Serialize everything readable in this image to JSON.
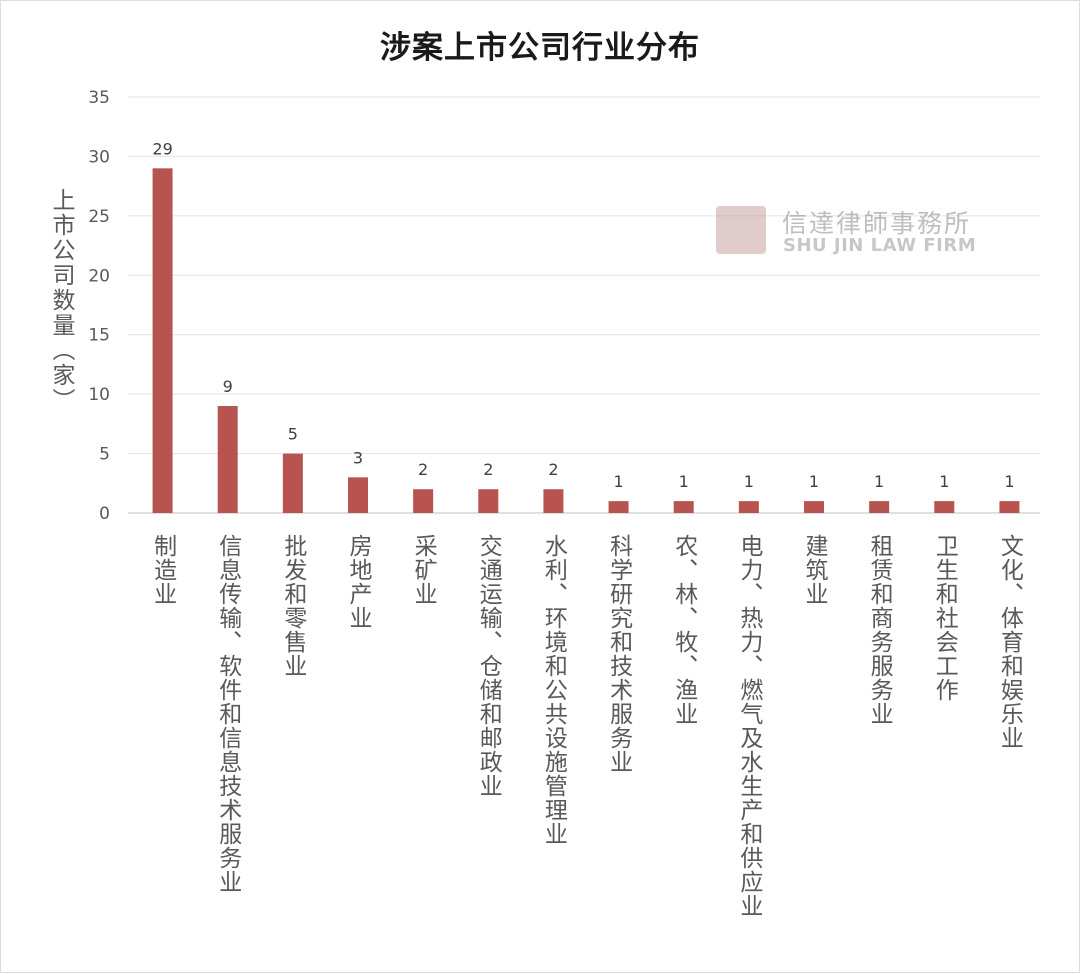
{
  "chart_data": {
    "type": "bar",
    "title": "涉案上市公司行业分布",
    "ylabel": "上市公司数量（家）",
    "xlabel": "",
    "ylim": [
      0,
      35
    ],
    "yticks": [
      0,
      5,
      10,
      15,
      20,
      25,
      30,
      35
    ],
    "grid": true,
    "bar_color": "#b85450",
    "categories": [
      "制造业",
      "信息传输、软件和信息技术服务业",
      "批发和零售业",
      "房地产业",
      "采矿业",
      "交通运输、仓储和邮政业",
      "水利、环境和公共设施管理业",
      "科学研究和技术服务业",
      "农、林、牧、渔业",
      "电力、热力、燃气及水生产和供应业",
      "建筑业",
      "租赁和商务服务业",
      "卫生和社会工作",
      "文化、体育和娱乐业"
    ],
    "values": [
      29,
      9,
      5,
      3,
      2,
      2,
      2,
      1,
      1,
      1,
      1,
      1,
      1,
      1
    ]
  },
  "watermark": {
    "name_cn": "信達律師事務所",
    "name_en": "SHU JIN LAW FIRM"
  }
}
